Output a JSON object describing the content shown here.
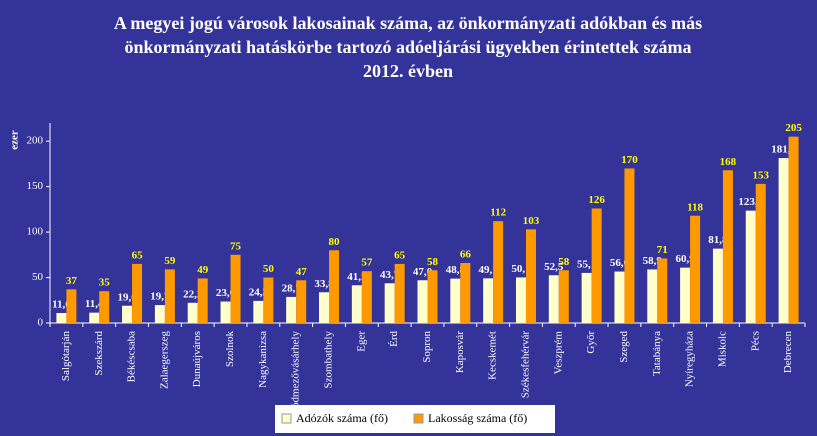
{
  "chart_data": {
    "type": "bar",
    "title": [
      "A megyei jogú városok lakosainak száma, az önkormányzati adókban és más",
      "önkormányzati hatáskörbe tartozó adóeljárási ügyekben érintettek száma",
      "2012. évben"
    ],
    "y_label": "ezer",
    "categories": [
      "Salgótarján",
      "Szekszárd",
      "Békéscsaba",
      "Zalaegerszeg",
      "Dunaújváros",
      "Szolnok",
      "Nagykanizsa",
      "Hódmezővásárhely",
      "Szombathely",
      "Eger",
      "Érd",
      "Sopron",
      "Kaposvár",
      "Kecskemét",
      "Székesfehérvár",
      "Veszprém",
      "Győr",
      "Szeged",
      "Tatabánya",
      "Nyíregyháza",
      "Miskolc",
      "Pécs",
      "Debrecen"
    ],
    "series": [
      {
        "name": "Adózók száma (fő)",
        "color": "#ffffcc",
        "label_color": "#ffffff",
        "values": [
          11.0,
          11.4,
          19.0,
          19.7,
          22.2,
          23.6,
          24.3,
          28.7,
          33.8,
          41.5,
          43.7,
          47.0,
          48.8,
          49.1,
          50.1,
          52.5,
          55.1,
          56.6,
          58.9,
          60.9,
          81.8,
          123.6,
          181.4
        ],
        "value_labels": [
          "11,0",
          "11,4",
          "19,0",
          "19,7",
          "22,2",
          "23,6",
          "24,3",
          "28,7",
          "33,8",
          "41,5",
          "43,7",
          "47,0",
          "48,8",
          "49,1",
          "50,1",
          "52,5",
          "55,1",
          "56,6",
          "58,9",
          "60,9",
          "81,8",
          "123,6",
          "181,4"
        ]
      },
      {
        "name": "Lakosság száma (fő)",
        "color": "#ff9900",
        "label_color": "#ffff00",
        "values": [
          37,
          35,
          65,
          59,
          49,
          75,
          50,
          47,
          80,
          57,
          65,
          58,
          66,
          112,
          103,
          58,
          126,
          170,
          71,
          118,
          168,
          153,
          205
        ]
      }
    ],
    "ylim": [
      0,
      220
    ],
    "yticks": [
      0,
      50,
      100,
      150,
      200
    ],
    "legend": "bottom"
  }
}
